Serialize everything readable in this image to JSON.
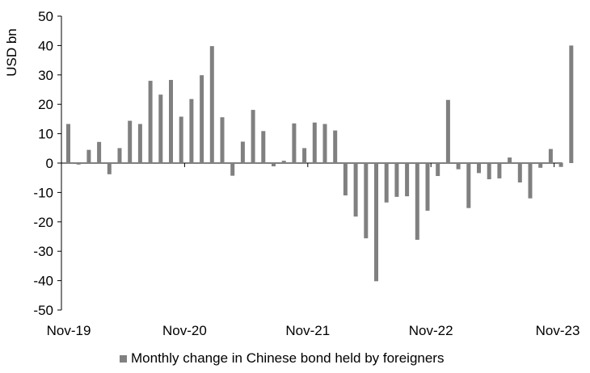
{
  "chart_data": {
    "type": "bar",
    "ylabel": "USD bn",
    "ylim": [
      -50,
      50
    ],
    "yticks": [
      50,
      40,
      30,
      20,
      10,
      0,
      -10,
      -20,
      -30,
      -40,
      -50
    ],
    "xtick_labels": [
      "Nov-19",
      "Nov-20",
      "Nov-21",
      "Nov-22",
      "Nov-23"
    ],
    "xtick_indices": [
      0,
      12,
      24,
      36,
      48
    ],
    "grid": false,
    "legend_position": "bottom",
    "series": [
      {
        "name": "Monthly change in Chinese bond held by foreigners",
        "color": "#808080",
        "values": [
          13.3,
          -0.5,
          4.5,
          7.2,
          -3.8,
          5.1,
          14.4,
          13.3,
          28.0,
          23.3,
          28.3,
          15.8,
          21.8,
          29.9,
          39.8,
          15.6,
          -4.3,
          7.3,
          18.1,
          10.9,
          -1.1,
          0.8,
          13.5,
          5.1,
          13.8,
          13.3,
          11.1,
          -11.0,
          -18.2,
          -25.6,
          -40.2,
          -13.4,
          -11.5,
          -11.3,
          -26.1,
          -16.2,
          -4.4,
          21.5,
          -2.1,
          -15.3,
          -3.4,
          -5.5,
          -5.2,
          1.9,
          -6.6,
          -12.0,
          -1.6,
          4.8,
          -1.3,
          40.0
        ],
        "bar_indices": [
          0,
          1,
          2,
          3,
          4,
          5,
          6,
          7,
          8,
          9,
          10,
          11,
          12,
          13,
          14,
          15,
          16,
          17,
          18,
          19,
          20,
          21,
          22,
          23,
          24,
          25,
          26,
          27,
          28,
          29,
          30,
          31,
          32,
          33,
          34,
          35,
          36,
          37,
          38,
          39,
          40,
          41,
          42,
          43,
          44,
          45,
          46,
          47,
          48,
          49
        ]
      }
    ]
  }
}
